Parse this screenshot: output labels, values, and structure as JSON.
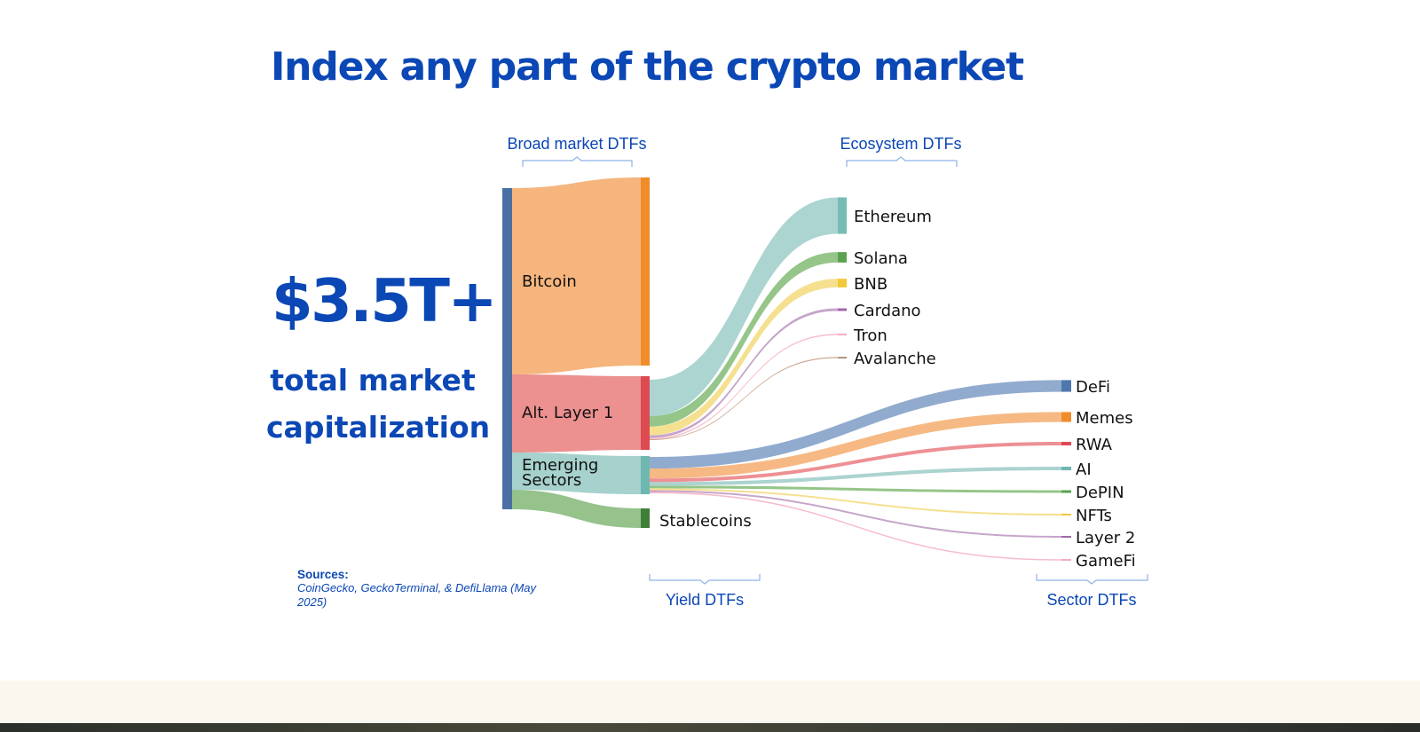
{
  "title": "Index any part of the crypto market",
  "stat": {
    "value": "$3.5T+",
    "label": "total market capitalization"
  },
  "sources": {
    "heading": "Sources:",
    "text": "CoinGecko, GeckoTerminal, & DefiLlama (May 2025)"
  },
  "chart_data": {
    "type": "sankey",
    "groups": {
      "broad": "Broad market DTFs",
      "ecosystem": "Ecosystem DTFs",
      "yield": "Yield DTFs",
      "sector": "Sector DTFs"
    },
    "nodes": {
      "total": {
        "color": "#4a6fa5"
      },
      "bitcoin": {
        "label": "Bitcoin",
        "color": "#f5b57d",
        "bar": "#f08c2a"
      },
      "alt_l1": {
        "label": "Alt. Layer 1",
        "color": "#ec9090",
        "bar": "#dd4a52"
      },
      "emerging": {
        "label": "Emerging Sectors",
        "color": "#a6d1cc",
        "bar": "#6fb8b1"
      },
      "stablecoins": {
        "label": "Stablecoins",
        "color": "#96c28c",
        "bar": "#3f7f38"
      }
    },
    "ecosystems": [
      {
        "label": "Ethereum",
        "color": "#a8d2ce",
        "bar": "#76bcb5",
        "weight": 42
      },
      {
        "label": "Solana",
        "color": "#8fc283",
        "bar": "#5aa24f",
        "weight": 12
      },
      {
        "label": "BNB",
        "color": "#f4de8a",
        "bar": "#f2c93a",
        "weight": 10
      },
      {
        "label": "Cardano",
        "color": "#c3a0c8",
        "bar": "#a066a9",
        "weight": 3
      },
      {
        "label": "Tron",
        "color": "#f7b8c8",
        "bar": "#f48fab",
        "weight": 1.5
      },
      {
        "label": "Avalanche",
        "color": "#c8a48c",
        "bar": "#9a7255",
        "weight": 1
      }
    ],
    "sectors": [
      {
        "label": "DeFi",
        "color": "#8aa6cb",
        "bar": "#4e77ad",
        "weight": 13
      },
      {
        "label": "Memes",
        "color": "#f5b57d",
        "bar": "#f08c2a",
        "weight": 11
      },
      {
        "label": "RWA",
        "color": "#ec8a8e",
        "bar": "#dd4a52",
        "weight": 4
      },
      {
        "label": "AI",
        "color": "#a6d1cc",
        "bar": "#6fb8b1",
        "weight": 4
      },
      {
        "label": "DePIN",
        "color": "#8fc283",
        "bar": "#5aa24f",
        "weight": 3
      },
      {
        "label": "NFTs",
        "color": "#f4de8a",
        "bar": "#f2c93a",
        "weight": 2
      },
      {
        "label": "Layer 2",
        "color": "#c3a0c8",
        "bar": "#a066a9",
        "weight": 2
      },
      {
        "label": "GameFi",
        "color": "#f7b8c8",
        "bar": "#f48fab",
        "weight": 1.5
      }
    ]
  }
}
